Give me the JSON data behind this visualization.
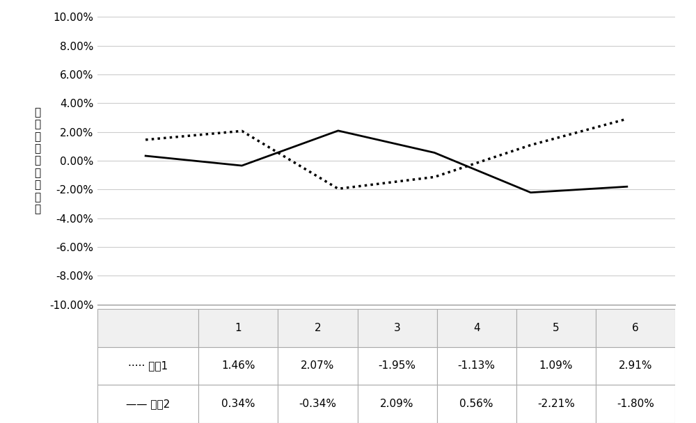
{
  "x": [
    1,
    2,
    3,
    4,
    5,
    6
  ],
  "series1": [
    0.0146,
    0.0207,
    -0.0195,
    -0.0113,
    0.0109,
    0.0291
  ],
  "series2": [
    0.0034,
    -0.0034,
    0.0209,
    0.0056,
    -0.0221,
    -0.018
  ],
  "series1_label": "系列1",
  "series2_label": "系列2",
  "series1_values_str": [
    "1.46%",
    "2.07%",
    "-1.95%",
    "-1.13%",
    "1.09%",
    "2.91%"
  ],
  "series2_values_str": [
    "0.34%",
    "-0.34%",
    "2.09%",
    "0.56%",
    "-2.21%",
    "-1.80%"
  ],
  "ylabel": "测\n值\n相\n对\n误\n差\n精\n密\n度",
  "ylim": [
    -0.1,
    0.1
  ],
  "yticks": [
    -0.1,
    -0.08,
    -0.06,
    -0.04,
    -0.02,
    0.0,
    0.02,
    0.04,
    0.06,
    0.08,
    0.1
  ],
  "background_color": "#ffffff",
  "grid_color": "#cccccc",
  "line_color": "#000000",
  "table_border_color": "#aaaaaa",
  "fontsize": 11
}
